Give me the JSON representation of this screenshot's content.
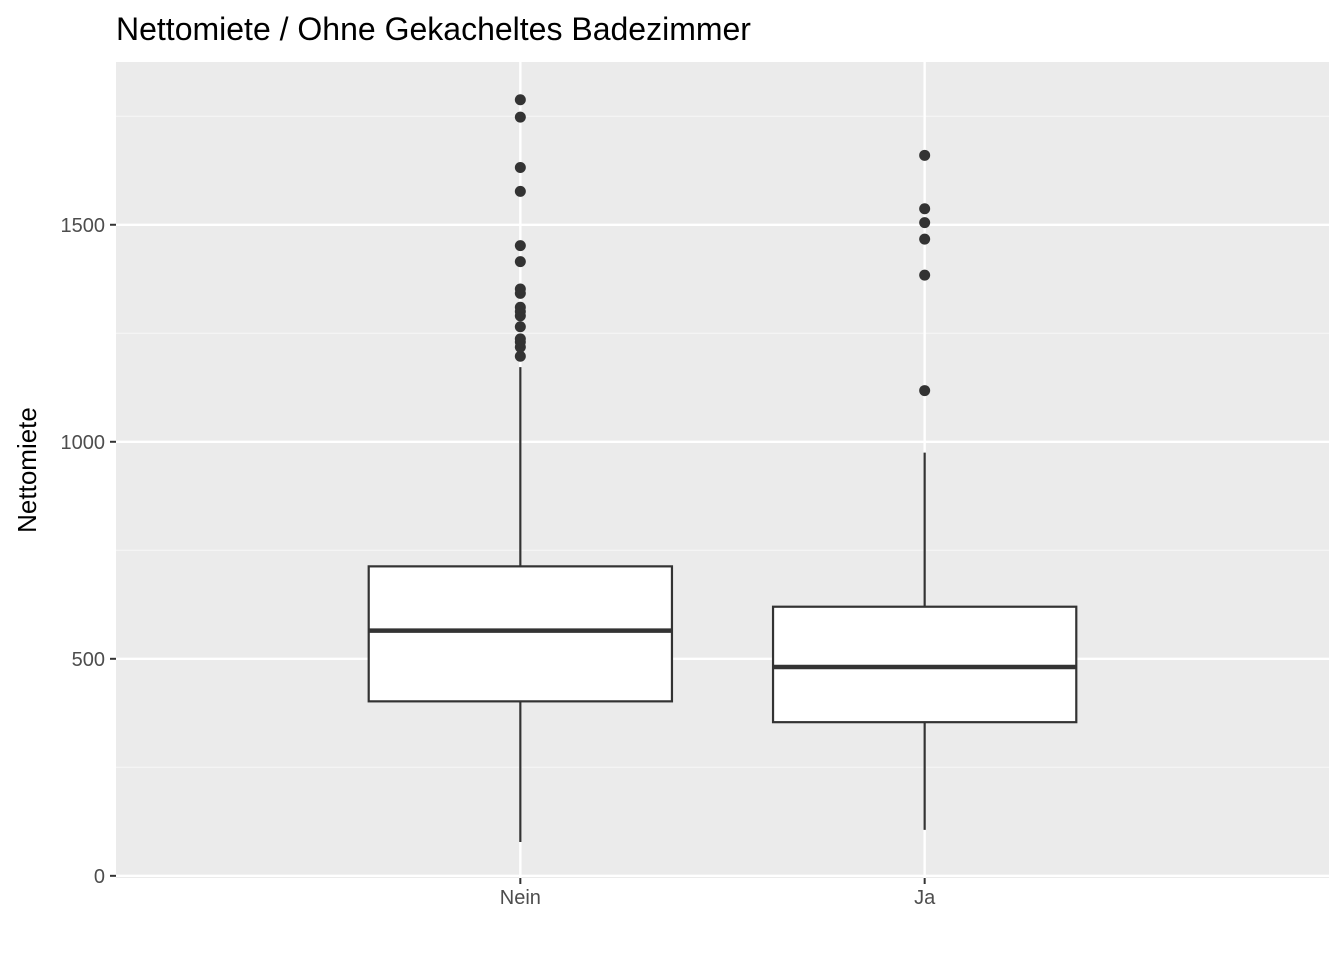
{
  "chart_data": {
    "type": "boxplot",
    "title": "Nettomiete / Ohne Gekacheltes Badezimmer",
    "xlabel": "",
    "ylabel": "Nettomiete",
    "ylim": [
      -5,
      1875
    ],
    "yticks": [
      0,
      500,
      1000,
      1500
    ],
    "grid": true,
    "legend": "none",
    "categories": [
      "Nein",
      "Ja"
    ],
    "boxes": [
      {
        "category": "Nein",
        "lower_whisker": 78,
        "q1": 402,
        "median": 565,
        "q3": 713,
        "upper_whisker": 1172,
        "outliers": [
          1197,
          1218,
          1230,
          1237,
          1265,
          1290,
          1300,
          1310,
          1342,
          1352,
          1415,
          1452,
          1577,
          1632,
          1748,
          1788
        ]
      },
      {
        "category": "Ja",
        "lower_whisker": 106,
        "q1": 354,
        "median": 481,
        "q3": 620,
        "upper_whisker": 975,
        "outliers": [
          1118,
          1384,
          1467,
          1505,
          1537,
          1660
        ]
      }
    ],
    "colors": {
      "panel": "#ebebeb",
      "grid_major": "#ffffff",
      "grid_minor": "#f5f5f5",
      "box_fill": "#ffffff",
      "box_stroke": "#333333",
      "outlier": "#333333",
      "tick_text": "#4d4d4d",
      "tick_mark": "#333333"
    }
  }
}
